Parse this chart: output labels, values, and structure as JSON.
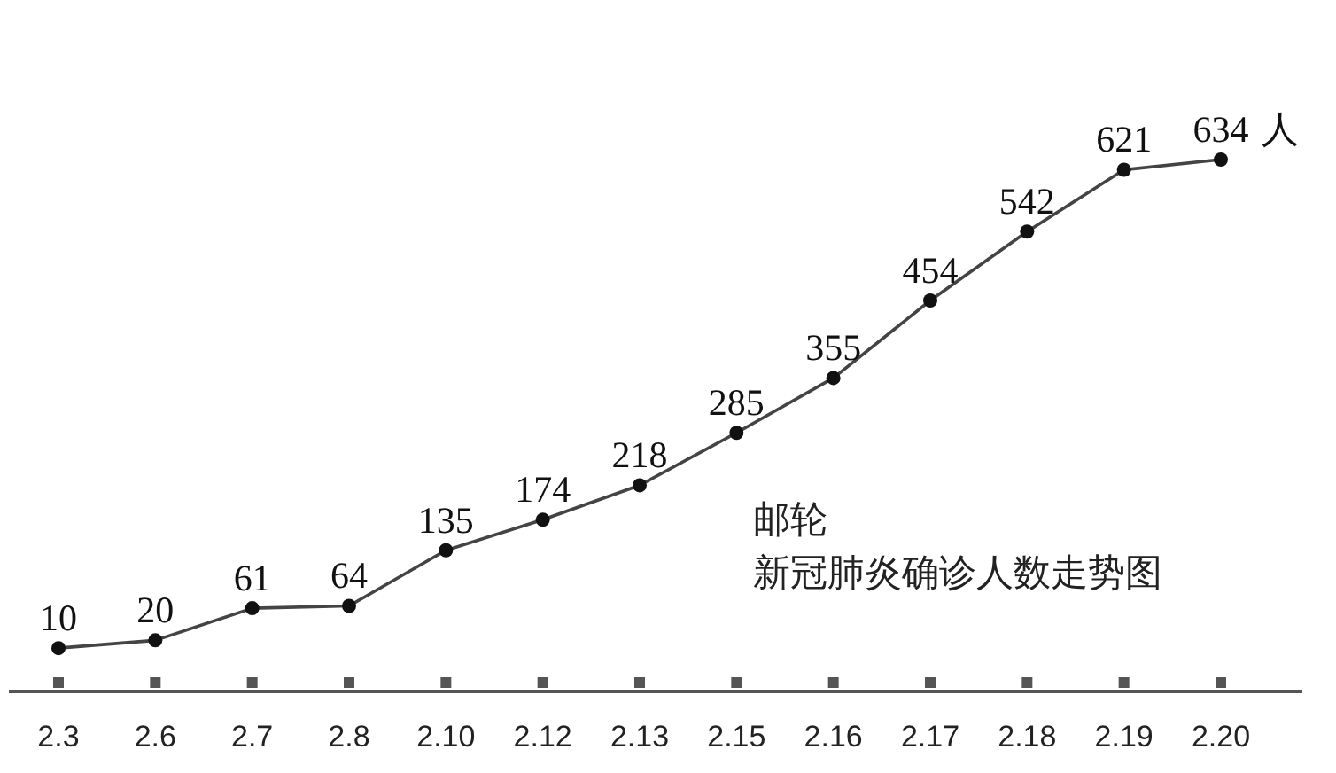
{
  "chart_data": {
    "type": "line",
    "title": "邮轮",
    "subtitle": "新冠肺炎确诊人数走势图",
    "categories": [
      "2.3",
      "2.6",
      "2.7",
      "2.8",
      "2.10",
      "2.12",
      "2.13",
      "2.15",
      "2.16",
      "2.17",
      "2.18",
      "2.19",
      "2.20"
    ],
    "series": [
      {
        "color": "#444444",
        "values": [
          10,
          20,
          61,
          64,
          135,
          174,
          218,
          285,
          355,
          454,
          542,
          621,
          634
        ]
      }
    ],
    "data_labels": true,
    "marker": "circle",
    "line_style": "solid",
    "grid": false,
    "annotations": [
      {
        "text": "人",
        "x": "2.20",
        "y": 634
      }
    ]
  }
}
